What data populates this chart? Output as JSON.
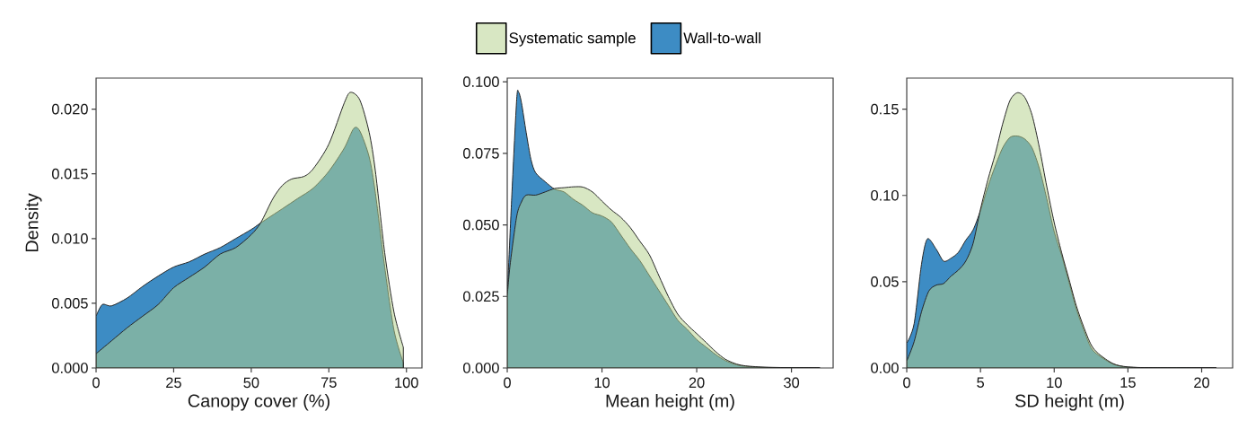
{
  "chart_data": [
    {
      "type": "area",
      "ylabel": "Density",
      "xlabel": "Canopy cover (%)",
      "legend": "top",
      "marker": "none",
      "line_style": "solid",
      "xlim": [
        0,
        105
      ],
      "ylim": [
        0,
        0.0224
      ],
      "xticks": [
        0,
        25,
        50,
        75,
        100
      ],
      "yticks": [
        {
          "value": 0,
          "label": "0.000"
        },
        {
          "value": 0.005,
          "label": "0.005"
        },
        {
          "value": 0.01,
          "label": "0.010"
        },
        {
          "value": 0.015,
          "label": "0.015"
        },
        {
          "value": 0.02,
          "label": "0.020"
        }
      ],
      "series": [
        {
          "name": "Systematic sample",
          "color": "#b4d18c",
          "x": [
            0,
            5,
            10,
            15,
            20,
            25,
            30,
            35,
            40,
            45,
            50,
            53,
            57,
            60,
            63,
            67,
            70,
            75,
            80,
            82,
            85,
            88,
            90,
            93,
            96,
            99
          ],
          "values": [
            0.0011,
            0.0021,
            0.0031,
            0.004,
            0.0049,
            0.0062,
            0.007,
            0.0078,
            0.0088,
            0.0093,
            0.0103,
            0.0112,
            0.0131,
            0.0141,
            0.0146,
            0.0148,
            0.0154,
            0.0173,
            0.0205,
            0.0213,
            0.0207,
            0.0182,
            0.0152,
            0.0089,
            0.0043,
            0.0016
          ]
        },
        {
          "name": "Wall-to-wall",
          "color": "#3d8cc4",
          "x": [
            0,
            2,
            5,
            10,
            15,
            20,
            25,
            30,
            35,
            40,
            45,
            50,
            53,
            60,
            65,
            70,
            75,
            80,
            83,
            85,
            88,
            90,
            93,
            96,
            99
          ],
          "values": [
            0.004,
            0.0049,
            0.0048,
            0.0054,
            0.0063,
            0.0071,
            0.0078,
            0.0082,
            0.0088,
            0.0093,
            0.01,
            0.0107,
            0.0112,
            0.0123,
            0.0131,
            0.0139,
            0.0152,
            0.017,
            0.0185,
            0.0183,
            0.0163,
            0.0135,
            0.0078,
            0.0029,
            0.0004
          ]
        }
      ]
    },
    {
      "type": "area",
      "xlabel": "Mean height (m)",
      "marker": "none",
      "line_style": "solid",
      "xlim": [
        0,
        34.4
      ],
      "ylim": [
        0,
        0.1013
      ],
      "xticks": [
        0,
        10,
        20,
        30
      ],
      "yticks": [
        {
          "value": 0,
          "label": "0.000"
        },
        {
          "value": 0.025,
          "label": "0.025"
        },
        {
          "value": 0.05,
          "label": "0.050"
        },
        {
          "value": 0.075,
          "label": "0.075"
        },
        {
          "value": 0.1,
          "label": "0.100"
        }
      ],
      "series": [
        {
          "color": "#b4d18c",
          "x": [
            0,
            0.3,
            1,
            1.5,
            2,
            3,
            4,
            5,
            6,
            7,
            8,
            9,
            10,
            11,
            12,
            13,
            14,
            15,
            16,
            17,
            18,
            19,
            20,
            21,
            22,
            23,
            24,
            25,
            27,
            30,
            33
          ],
          "values": [
            0.025,
            0.036,
            0.053,
            0.058,
            0.0604,
            0.0604,
            0.0615,
            0.0627,
            0.063,
            0.0633,
            0.0632,
            0.0615,
            0.0583,
            0.0552,
            0.0526,
            0.049,
            0.0443,
            0.0396,
            0.0323,
            0.025,
            0.0188,
            0.0151,
            0.012,
            0.0089,
            0.0057,
            0.0031,
            0.0016,
            0.0008,
            0.0003,
            0.0001,
            0
          ]
        },
        {
          "color": "#3d8cc4",
          "x": [
            0,
            0.5,
            1,
            1.2,
            1.5,
            2,
            2.5,
            3,
            4,
            5,
            6,
            7,
            8,
            9,
            10,
            11,
            12,
            13,
            14,
            15,
            16,
            17,
            18,
            19,
            20,
            21,
            22,
            23,
            24,
            25,
            27,
            30,
            33
          ],
          "values": [
            0.025,
            0.0615,
            0.094,
            0.0964,
            0.0927,
            0.0823,
            0.0729,
            0.0682,
            0.0651,
            0.0625,
            0.0615,
            0.0589,
            0.0568,
            0.0542,
            0.0531,
            0.051,
            0.0464,
            0.0417,
            0.0375,
            0.0323,
            0.0271,
            0.0219,
            0.0167,
            0.0135,
            0.0099,
            0.0073,
            0.0047,
            0.0026,
            0.0013,
            0.0006,
            0.0002,
            0.0001,
            0
          ]
        }
      ]
    },
    {
      "type": "area",
      "xlabel": "SD height (m)",
      "marker": "none",
      "line_style": "solid",
      "xlim": [
        0,
        22.1
      ],
      "ylim": [
        0,
        0.168
      ],
      "xticks": [
        0,
        5,
        10,
        15,
        20
      ],
      "yticks": [
        {
          "value": 0,
          "label": "0.00"
        },
        {
          "value": 0.05,
          "label": "0.05"
        },
        {
          "value": 0.1,
          "label": "0.10"
        },
        {
          "value": 0.15,
          "label": "0.15"
        }
      ],
      "series": [
        {
          "color": "#b4d18c",
          "x": [
            0,
            0.5,
            1,
            1.5,
            2,
            2.5,
            3,
            3.5,
            4,
            4.5,
            5,
            5.5,
            6,
            6.5,
            7,
            7.5,
            8,
            8.5,
            9,
            9.5,
            10,
            10.5,
            11,
            11.5,
            12,
            12.5,
            13,
            14,
            15,
            17,
            21
          ],
          "values": [
            0.004,
            0.0152,
            0.0325,
            0.0446,
            0.048,
            0.0489,
            0.0532,
            0.0567,
            0.0619,
            0.0722,
            0.092,
            0.109,
            0.124,
            0.1413,
            0.155,
            0.1595,
            0.1569,
            0.1465,
            0.1275,
            0.105,
            0.0843,
            0.067,
            0.0515,
            0.036,
            0.0238,
            0.0135,
            0.0083,
            0.0025,
            0.0006,
            0.0001,
            0
          ]
        },
        {
          "color": "#3d8cc4",
          "x": [
            0,
            0.5,
            1,
            1.4,
            2,
            2.5,
            3,
            3.5,
            4,
            4.5,
            5,
            5.5,
            6,
            6.5,
            7,
            7.5,
            8,
            8.5,
            9,
            9.5,
            10,
            10.5,
            11,
            11.5,
            12,
            12.5,
            13,
            14,
            15,
            17,
            21
          ],
          "values": [
            0.0143,
            0.0256,
            0.0601,
            0.0748,
            0.0688,
            0.0619,
            0.0636,
            0.067,
            0.074,
            0.08,
            0.0912,
            0.105,
            0.117,
            0.1275,
            0.1336,
            0.1344,
            0.1327,
            0.1275,
            0.1154,
            0.098,
            0.079,
            0.0653,
            0.0498,
            0.0342,
            0.0221,
            0.0117,
            0.0074,
            0.0022,
            0.0005,
            0.0001,
            0
          ]
        }
      ]
    }
  ]
}
